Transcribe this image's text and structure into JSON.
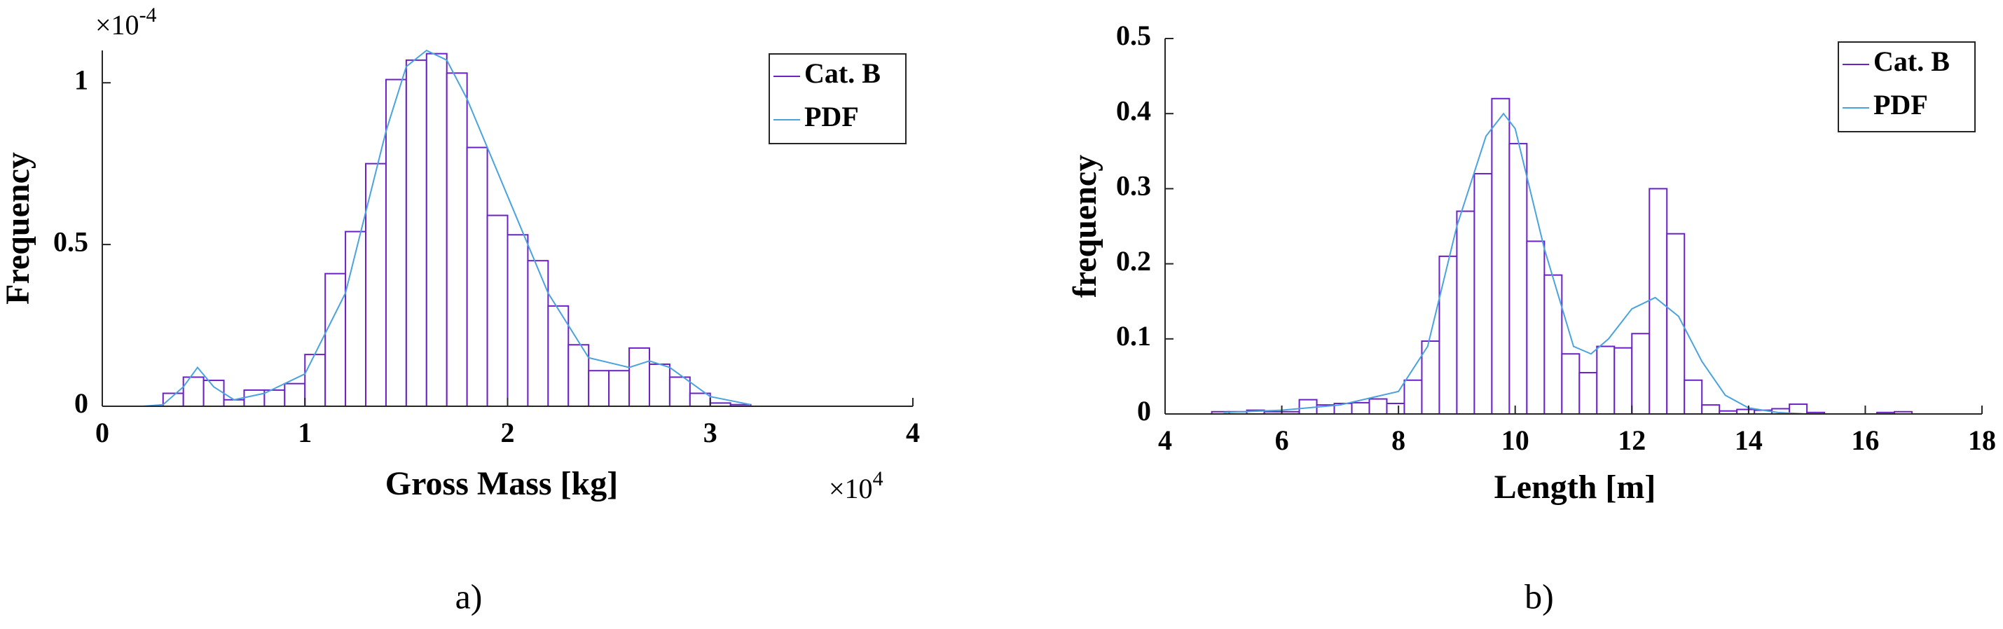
{
  "chart_data": [
    {
      "type": "histogram",
      "caption": "a)",
      "x_label": "Gross Mass [kg]",
      "y_label": "Frequency",
      "x_multiplier": {
        "base": "×10",
        "exponent": "4"
      },
      "y_multiplier": {
        "base": "×10",
        "exponent": "-4"
      },
      "xlim": [
        0,
        4
      ],
      "xticks": [
        0,
        1,
        2,
        3,
        4
      ],
      "ylim": [
        0,
        1.1
      ],
      "yticks": [
        0,
        0.5,
        1
      ],
      "legend": "northeast",
      "grid": false,
      "series": [
        {
          "name": "Cat. B",
          "type": "histogram",
          "color": "#6a22c8",
          "bins": [
            0.3,
            0.4,
            0.5,
            0.6,
            0.7,
            0.8,
            0.9,
            1.0,
            1.1,
            1.2,
            1.3,
            1.4,
            1.5,
            1.6,
            1.7,
            1.8,
            1.9,
            2.0,
            2.1,
            2.2,
            2.3,
            2.4,
            2.5,
            2.6,
            2.7,
            2.8,
            2.9,
            3.0,
            3.1,
            3.2
          ],
          "values": [
            0.04,
            0.09,
            0.08,
            0.02,
            0.05,
            0.05,
            0.07,
            0.16,
            0.41,
            0.54,
            0.75,
            1.01,
            1.07,
            1.09,
            1.03,
            0.8,
            0.59,
            0.53,
            0.45,
            0.31,
            0.19,
            0.11,
            0.11,
            0.18,
            0.13,
            0.09,
            0.04,
            0.01,
            0.005
          ]
        },
        {
          "name": "PDF",
          "type": "line",
          "color": "#4aa3df",
          "x": [
            0,
            0.2,
            0.3,
            0.4,
            0.47,
            0.55,
            0.65,
            0.8,
            1.0,
            1.2,
            1.4,
            1.5,
            1.6,
            1.7,
            1.8,
            2.0,
            2.2,
            2.4,
            2.6,
            2.7,
            2.8,
            3.0,
            3.2
          ],
          "values": [
            0,
            0,
            0.005,
            0.06,
            0.12,
            0.06,
            0.02,
            0.04,
            0.1,
            0.35,
            0.85,
            1.05,
            1.1,
            1.07,
            0.95,
            0.65,
            0.35,
            0.15,
            0.12,
            0.14,
            0.12,
            0.03,
            0.005
          ]
        }
      ]
    },
    {
      "type": "histogram",
      "caption": "b)",
      "x_label": "Length [m]",
      "y_label": "frequency",
      "xlim": [
        4,
        18
      ],
      "xticks": [
        4,
        6,
        8,
        10,
        12,
        14,
        16,
        18
      ],
      "ylim": [
        0,
        0.5
      ],
      "yticks": [
        0,
        0.1,
        0.2,
        0.3,
        0.4,
        0.5
      ],
      "legend": "northeast",
      "grid": false,
      "series": [
        {
          "name": "Cat. B",
          "type": "histogram",
          "color": "#6a22c8",
          "bins": [
            4.8,
            5.1,
            5.4,
            5.7,
            6,
            6.3,
            6.6,
            6.9,
            7.2,
            7.5,
            7.8,
            8.1,
            8.4,
            8.7,
            9,
            9.3,
            9.6,
            9.9,
            10.2,
            10.5,
            10.8,
            11.1,
            11.4,
            11.7,
            12,
            12.3,
            12.6,
            12.9,
            13.2,
            13.5,
            13.8,
            14.1,
            14.4,
            14.7,
            15,
            15.3,
            15.6,
            15.9,
            16.2,
            16.5,
            16.8
          ],
          "values": [
            0.003,
            0.003,
            0.005,
            0.003,
            0.003,
            0.019,
            0.012,
            0.014,
            0.015,
            0.02,
            0.014,
            0.045,
            0.097,
            0.21,
            0.27,
            0.32,
            0.42,
            0.36,
            0.23,
            0.185,
            0.08,
            0.055,
            0.09,
            0.088,
            0.107,
            0.3,
            0.24,
            0.045,
            0.012,
            0.004,
            0.006,
            0.005,
            0.007,
            0.013,
            0.002,
            0,
            0,
            0,
            0.002,
            0.003
          ]
        },
        {
          "name": "PDF",
          "type": "line",
          "color": "#4aa3df",
          "x": [
            5,
            6,
            7,
            8,
            8.5,
            9,
            9.5,
            9.8,
            10,
            10.5,
            11,
            11.3,
            11.6,
            12,
            12.4,
            12.8,
            13.2,
            13.6,
            14,
            14.5,
            15
          ],
          "values": [
            0.002,
            0.005,
            0.012,
            0.03,
            0.09,
            0.25,
            0.37,
            0.4,
            0.38,
            0.22,
            0.09,
            0.08,
            0.1,
            0.14,
            0.155,
            0.13,
            0.07,
            0.025,
            0.008,
            0.002,
            0
          ]
        }
      ]
    }
  ]
}
